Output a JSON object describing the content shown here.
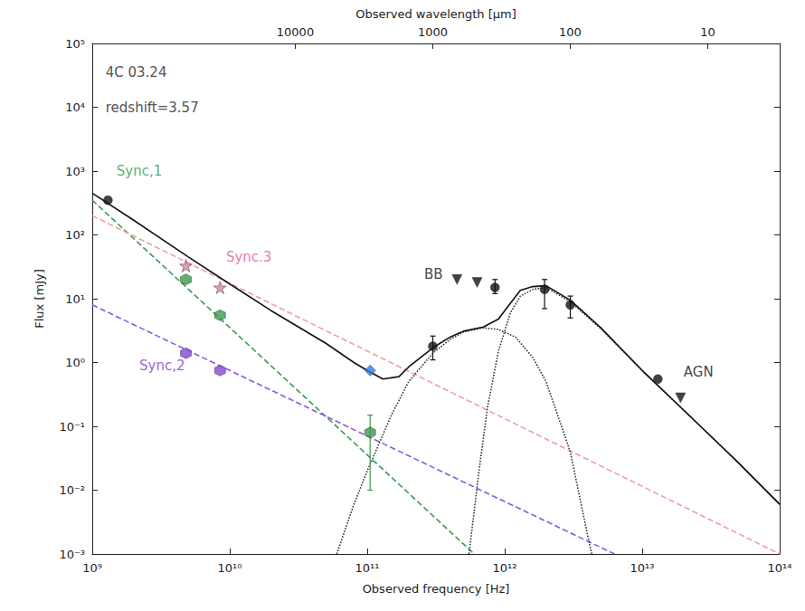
{
  "chart_data": {
    "type": "scatter",
    "xlabel": "Observed frequency [Hz]",
    "ylabel": "Flux [mJy]",
    "x2label": "Observed wavelength [μm]",
    "log": true,
    "grid": false,
    "xlim": [
      1000000000.0,
      100000000000000.0
    ],
    "xticks": [
      {
        "value": 1000000000.0,
        "label": "10⁹"
      },
      {
        "value": 10000000000.0,
        "label": "10¹⁰"
      },
      {
        "value": 100000000000.0,
        "label": "10¹¹"
      },
      {
        "value": 1000000000000.0,
        "label": "10¹²"
      },
      {
        "value": 10000000000000.0,
        "label": "10¹³"
      },
      {
        "value": 100000000000000.0,
        "label": "10¹⁴"
      }
    ],
    "ylim": [
      0.001,
      100000
    ],
    "yticks": [
      {
        "value": 0.001,
        "label": "10⁻³"
      },
      {
        "value": 0.01,
        "label": "10⁻²"
      },
      {
        "value": 0.1,
        "label": "10⁻¹"
      },
      {
        "value": 1,
        "label": "10⁰"
      },
      {
        "value": 10,
        "label": "10¹"
      },
      {
        "value": 100,
        "label": "10²"
      },
      {
        "value": 1000,
        "label": "10³"
      },
      {
        "value": 10000,
        "label": "10⁴"
      },
      {
        "value": 100000,
        "label": "10⁵"
      }
    ],
    "x2lim": [
      299792,
      2.998
    ],
    "x2ticks": [
      10000,
      1000,
      100,
      10
    ],
    "annotations": [
      {
        "text": "4C 03.24",
        "x": 1250000000.0,
        "y": 35000,
        "color": "#222222"
      },
      {
        "text": "redshift=3.57",
        "x": 1250000000.0,
        "y": 10000,
        "color": "#222222"
      },
      {
        "text": "Sync,1",
        "x": 1500000000.0,
        "y": 1000,
        "color": "#2e9a44"
      },
      {
        "text": "Sync.3",
        "x": 9400000000.0,
        "y": 45,
        "color": "#e0559a"
      },
      {
        "text": "Sync,2",
        "x": 2200000000.0,
        "y": 0.9,
        "color": "#7a3dd0"
      },
      {
        "text": "BB",
        "x": 260000000000.0,
        "y": 24,
        "color": "#111111"
      },
      {
        "text": "AGN",
        "x": 20000000000000.0,
        "y": 0.7,
        "color": "#111111"
      }
    ],
    "series": [
      {
        "type": "line",
        "line_style": "dashed",
        "color": "#3d9a4f",
        "x": [
          1000000000.0,
          600000000000.0
        ],
        "values": [
          350,
          0.001
        ]
      },
      {
        "type": "line",
        "line_style": "dashed",
        "color": "#ee9fa6",
        "x": [
          1000000000.0,
          100000000000000.0
        ],
        "values": [
          200,
          0.001
        ]
      },
      {
        "type": "line",
        "line_style": "dashed",
        "color": "#8a5ae0",
        "x": [
          1000000000.0,
          6300000000000.0
        ],
        "values": [
          8,
          0.001
        ]
      },
      {
        "type": "line",
        "line_style": "dotted",
        "color": "#333333",
        "x": [
          60000000000.0,
          80000000000.0,
          100000000000.0,
          150000000000.0,
          200000000000.0,
          300000000000.0,
          400000000000.0,
          500000000000.0,
          700000000000.0,
          900000000000.0,
          1200000000000.0,
          1600000000000.0,
          2000000000000.0,
          3000000000000.0,
          4000000000000.0,
          4300000000000.0
        ],
        "values": [
          0.001,
          0.006,
          0.02,
          0.15,
          0.5,
          1.4,
          2.3,
          3.0,
          3.5,
          3.3,
          2.5,
          1.2,
          0.5,
          0.04,
          0.002,
          0.001
        ]
      },
      {
        "type": "line",
        "line_style": "dotted",
        "color": "#333333",
        "x": [
          550000000000.0,
          650000000000.0,
          750000000000.0,
          900000000000.0,
          1100000000000.0,
          1300000000000.0,
          1600000000000.0,
          2000000000000.0,
          3000000000000.0,
          5000000000000.0,
          10000000000000.0,
          20000000000000.0,
          50000000000000.0,
          100000000000000.0
        ],
        "values": [
          0.001,
          0.02,
          0.2,
          1.5,
          6,
          11,
          14,
          15,
          9,
          3.4,
          0.75,
          0.18,
          0.027,
          0.006
        ]
      },
      {
        "type": "line",
        "line_style": "solid",
        "color": "#111111",
        "x": [
          1000000000.0,
          2000000000.0,
          5000000000.0,
          10000000000.0,
          20000000000.0,
          50000000000.0,
          80000000000.0,
          100000000000.0,
          130000000000.0,
          170000000000.0,
          200000000000.0,
          300000000000.0,
          400000000000.0,
          500000000000.0,
          700000000000.0,
          900000000000.0,
          1000000000000.0,
          1300000000000.0,
          1600000000000.0,
          2000000000000.0,
          3000000000000.0,
          5000000000000.0,
          10000000000000.0,
          20000000000000.0,
          50000000000000.0,
          100000000000000.0
        ],
        "values": [
          450,
          170,
          45,
          17,
          6.5,
          2.0,
          1.0,
          0.75,
          0.55,
          0.6,
          0.85,
          1.7,
          2.5,
          3.1,
          3.6,
          4.8,
          6.5,
          13.5,
          15.5,
          16,
          9.5,
          3.5,
          0.75,
          0.18,
          0.027,
          0.006
        ]
      },
      {
        "type": "scatter",
        "marker": "hexagon",
        "color": "#3d9a4f",
        "x": [
          4800000000.0,
          8500000000.0,
          105000000000.0
        ],
        "values": [
          20,
          5.5,
          0.08
        ],
        "error_low": [
          null,
          null,
          0.01
        ],
        "error_high": [
          null,
          null,
          0.15
        ]
      },
      {
        "type": "scatter",
        "marker": "star",
        "color": "#e07fae",
        "x": [
          4800000000.0,
          8500000000.0
        ],
        "values": [
          33,
          15
        ]
      },
      {
        "type": "scatter",
        "marker": "hexagon",
        "color": "#8646d6",
        "x": [
          4800000000.0,
          8500000000.0
        ],
        "values": [
          1.4,
          0.75
        ]
      },
      {
        "type": "scatter",
        "marker": "circle",
        "color": "#111111",
        "x": [
          1300000000.0,
          300000000000.0,
          850000000000.0,
          1950000000000.0,
          3000000000000.0,
          13000000000000.0
        ],
        "values": [
          350,
          1.8,
          15,
          14,
          8,
          0.55
        ],
        "error_low": [
          null,
          1.1,
          12,
          7,
          5,
          null
        ],
        "error_high": [
          null,
          2.6,
          20,
          20,
          11,
          null
        ]
      },
      {
        "type": "scatter",
        "marker": "triangle_down",
        "color": "#111111",
        "x": [
          450000000000.0,
          630000000000.0,
          19000000000000.0
        ],
        "values": [
          20,
          18,
          0.28
        ]
      },
      {
        "type": "scatter",
        "marker": "diamond",
        "color": "#2f7fdc",
        "x": [
          105000000000.0
        ],
        "values": [
          0.75
        ]
      }
    ]
  }
}
